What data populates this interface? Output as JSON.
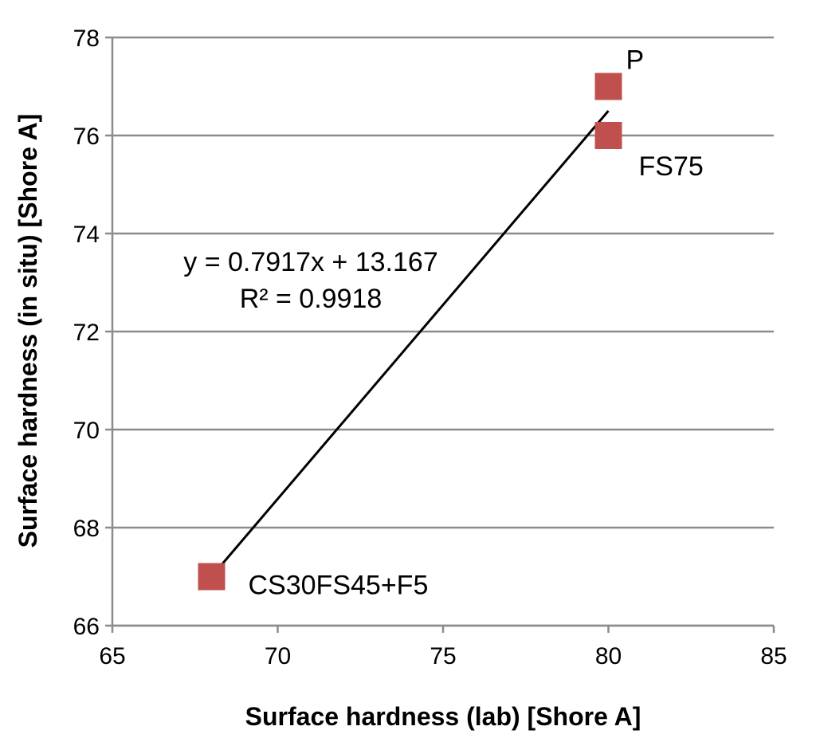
{
  "chart_data": {
    "type": "scatter",
    "xlabel": "Surface hardness (lab) [Shore A]",
    "ylabel": "Surface hardness (in situ) [Shore A]",
    "xlim": [
      65,
      85
    ],
    "ylim": [
      66,
      78
    ],
    "xticks": [
      65,
      70,
      75,
      80,
      85
    ],
    "yticks": [
      66,
      68,
      70,
      72,
      74,
      76,
      78
    ],
    "grid": "horizontal",
    "marker_color": "#c0504d",
    "line_color": "#000000",
    "points": [
      {
        "label": "P",
        "x": 80,
        "y": 77
      },
      {
        "label": "FS75",
        "x": 80,
        "y": 76
      },
      {
        "label": "CS30FS45+F5",
        "x": 68,
        "y": 67
      }
    ],
    "trendline": {
      "slope": 0.7917,
      "intercept": 13.167,
      "x_range": [
        68,
        80
      ],
      "equation": "y = 0.7917x + 13.167",
      "r_squared": "R² = 0.9918"
    }
  }
}
